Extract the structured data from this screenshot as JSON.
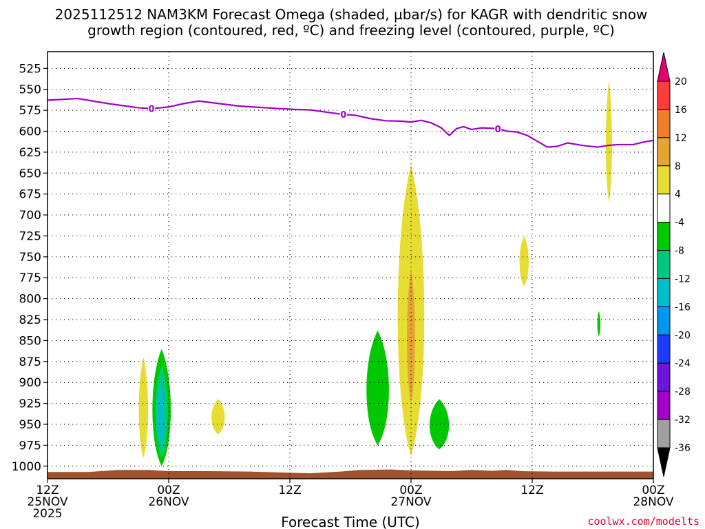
{
  "chart_data": {
    "type": "heatmap",
    "title": [
      "2025112512 NAM3KM Forecast Omega (shaded, µbar/s) for KAGR with dendritic snow",
      "growth region (contoured, red, ºC) and freezing level (contoured, purple, ºC)"
    ],
    "xlabel": "Forecast Time (UTC)",
    "ylabel": "",
    "x_unit": "hours from 2025-11-25 12Z",
    "xlim": [
      0,
      60
    ],
    "x_ticks": [
      {
        "x": 0,
        "lines": [
          "12Z",
          "25NOV",
          "2025"
        ]
      },
      {
        "x": 12,
        "lines": [
          "00Z",
          "26NOV"
        ]
      },
      {
        "x": 24,
        "lines": [
          "12Z"
        ]
      },
      {
        "x": 36,
        "lines": [
          "00Z",
          "27NOV"
        ]
      },
      {
        "x": 48,
        "lines": [
          "12Z"
        ]
      },
      {
        "x": 60,
        "lines": [
          "00Z",
          "28NOV"
        ]
      }
    ],
    "ylim": [
      1015,
      505
    ],
    "y_ticks": [
      525,
      550,
      575,
      600,
      625,
      650,
      675,
      700,
      725,
      750,
      775,
      800,
      825,
      850,
      875,
      900,
      925,
      950,
      975,
      1000
    ],
    "grid": true,
    "colorbar": {
      "labels": [
        "20",
        "16",
        "12",
        "8",
        "4",
        "-4",
        "-8",
        "-12",
        "-16",
        "-20",
        "-24",
        "-28",
        "-32",
        "-36"
      ],
      "bins": [
        {
          "lo": 20,
          "hi": 24,
          "color": "#e4006e"
        },
        {
          "lo": 16,
          "hi": 20,
          "color": "#ff3c3c"
        },
        {
          "lo": 12,
          "hi": 16,
          "color": "#f07d28"
        },
        {
          "lo": 8,
          "hi": 12,
          "color": "#e6a532"
        },
        {
          "lo": 4,
          "hi": 8,
          "color": "#e6dc32"
        },
        {
          "lo": -4,
          "hi": 4,
          "color": "#ffffff"
        },
        {
          "lo": -8,
          "hi": -4,
          "color": "#00c800"
        },
        {
          "lo": -12,
          "hi": -8,
          "color": "#00c882"
        },
        {
          "lo": -16,
          "hi": -12,
          "color": "#00bec8"
        },
        {
          "lo": -20,
          "hi": -16,
          "color": "#0096f0"
        },
        {
          "lo": -24,
          "hi": -20,
          "color": "#1e3cff"
        },
        {
          "lo": -28,
          "hi": -24,
          "color": "#6e14dc"
        },
        {
          "lo": -32,
          "hi": -28,
          "color": "#a000c8"
        },
        {
          "lo": -36,
          "hi": -32,
          "color": "#a0a0a0"
        },
        {
          "lo": -40,
          "hi": -36,
          "color": "#000000"
        }
      ]
    },
    "freezing_level": {
      "color": "#a000c8",
      "label": "0",
      "label_x": [
        10.3,
        29.3,
        44.6
      ],
      "points": [
        [
          0,
          563
        ],
        [
          3,
          561
        ],
        [
          6,
          567
        ],
        [
          9,
          572
        ],
        [
          10.3,
          573
        ],
        [
          12,
          571
        ],
        [
          13.5,
          567
        ],
        [
          15,
          564
        ],
        [
          17,
          567
        ],
        [
          19,
          570
        ],
        [
          21,
          571.5
        ],
        [
          23,
          573
        ],
        [
          24.5,
          574
        ],
        [
          26,
          574.5
        ],
        [
          27.5,
          577
        ],
        [
          29.3,
          580
        ],
        [
          30.5,
          581
        ],
        [
          32,
          585
        ],
        [
          33.5,
          587.5
        ],
        [
          35,
          588
        ],
        [
          36,
          589
        ],
        [
          37,
          587
        ],
        [
          38,
          590
        ],
        [
          39,
          596
        ],
        [
          39.8,
          605
        ],
        [
          40.5,
          597
        ],
        [
          41.2,
          594.5
        ],
        [
          42,
          598
        ],
        [
          43,
          596
        ],
        [
          44,
          596.5
        ],
        [
          44.6,
          597
        ],
        [
          45.5,
          600
        ],
        [
          46.5,
          601
        ],
        [
          47.5,
          605
        ],
        [
          48.5,
          612
        ],
        [
          49.5,
          619
        ],
        [
          50.5,
          618
        ],
        [
          51.5,
          614
        ],
        [
          53,
          617
        ],
        [
          54.5,
          619
        ],
        [
          55.5,
          617
        ],
        [
          56.5,
          616
        ],
        [
          58,
          616
        ],
        [
          59,
          613
        ],
        [
          60,
          611
        ]
      ]
    },
    "omega_regions": [
      {
        "value": 6,
        "color": "#e6dc32",
        "cx": 9.5,
        "y_top": 870,
        "y_bot": 990,
        "half_w": 0.45
      },
      {
        "value": -6,
        "color": "#00c800",
        "cx": 11.3,
        "y_top": 860,
        "y_bot": 1000,
        "half_w": 0.9
      },
      {
        "value": -10,
        "color": "#00c882",
        "cx": 11.3,
        "y_top": 880,
        "y_bot": 990,
        "half_w": 0.6
      },
      {
        "value": -14,
        "color": "#00bec8",
        "cx": 11.2,
        "y_top": 900,
        "y_bot": 975,
        "half_w": 0.35
      },
      {
        "value": 6,
        "color": "#e6dc32",
        "cx": 16.9,
        "y_top": 920,
        "y_bot": 962,
        "half_w": 0.65
      },
      {
        "value": -6,
        "color": "#00c800",
        "cx": 32.7,
        "y_top": 838,
        "y_bot": 975,
        "half_w": 1.1
      },
      {
        "value": 6,
        "color": "#e6dc32",
        "cx": 36.0,
        "y_top": 640,
        "y_bot": 988,
        "half_w": 1.3
      },
      {
        "value": 10,
        "color": "#e6a532",
        "cx": 36.0,
        "y_top": 765,
        "y_bot": 925,
        "half_w": 0.4
      },
      {
        "value": -6,
        "color": "#00c800",
        "cx": 38.8,
        "y_top": 920,
        "y_bot": 980,
        "half_w": 0.95
      },
      {
        "value": 6,
        "color": "#e6dc32",
        "cx": 47.2,
        "y_top": 725,
        "y_bot": 785,
        "half_w": 0.45
      },
      {
        "value": -6,
        "color": "#00c800",
        "cx": 54.6,
        "y_top": 815,
        "y_bot": 845,
        "half_w": 0.15
      },
      {
        "value": 6,
        "color": "#e6dc32",
        "cx": 55.6,
        "y_top": 540,
        "y_bot": 685,
        "half_w": 0.3
      }
    ],
    "terrain": {
      "color": "#a0522d",
      "points": [
        [
          0,
          1007
        ],
        [
          4,
          1007
        ],
        [
          7,
          1004.5
        ],
        [
          10,
          1004.5
        ],
        [
          12,
          1006
        ],
        [
          16,
          1006
        ],
        [
          20,
          1006.5
        ],
        [
          23,
          1007.5
        ],
        [
          26,
          1008.5
        ],
        [
          29,
          1006.5
        ],
        [
          31,
          1004.5
        ],
        [
          34,
          1004
        ],
        [
          36,
          1005
        ],
        [
          40,
          1006
        ],
        [
          42,
          1004.5
        ],
        [
          44,
          1005.5
        ],
        [
          45.5,
          1004.5
        ],
        [
          47,
          1006
        ],
        [
          50,
          1006.5
        ],
        [
          54,
          1006.5
        ],
        [
          57,
          1006.5
        ],
        [
          60,
          1006.5
        ]
      ]
    },
    "credit": "coolwx.com/modelts"
  }
}
